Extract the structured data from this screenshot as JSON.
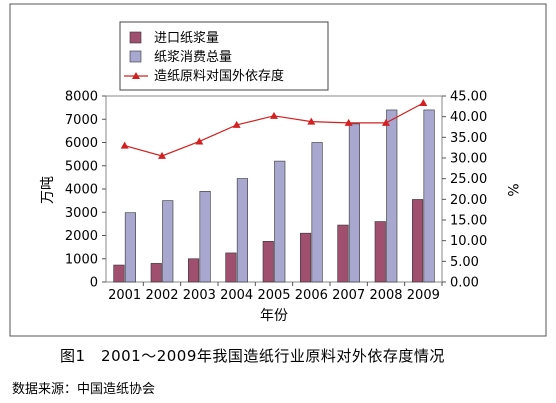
{
  "chart_data": {
    "type": "bar",
    "categories": [
      "2001",
      "2002",
      "2003",
      "2004",
      "2005",
      "2006",
      "2007",
      "2008",
      "2009"
    ],
    "series": [
      {
        "name": "进口纸浆量",
        "type": "bar",
        "axis": "left",
        "color": "#a0506e",
        "values": [
          730,
          800,
          1000,
          1250,
          1750,
          2100,
          2450,
          2600,
          3550
        ]
      },
      {
        "name": "纸浆消费总量",
        "type": "bar",
        "axis": "left",
        "color": "#a7a7d0",
        "values": [
          2980,
          3500,
          3900,
          4450,
          5200,
          6000,
          6800,
          7400,
          7400
        ]
      },
      {
        "name": "造纸原料对国外依存度",
        "type": "line",
        "axis": "right",
        "color": "#d42020",
        "values": [
          33.0,
          30.5,
          34.0,
          38.0,
          40.2,
          38.8,
          38.5,
          38.5,
          43.3
        ]
      }
    ],
    "ylabel": "万吨",
    "y2label": "%",
    "xlabel": "年份",
    "ylim": [
      0,
      8000
    ],
    "y2lim": [
      0,
      45
    ],
    "yticks": [
      "0",
      "1000",
      "2000",
      "3000",
      "4000",
      "5000",
      "6000",
      "7000",
      "8000"
    ],
    "y2ticks": [
      "0.00",
      "5.00",
      "10.00",
      "15.00",
      "20.00",
      "25.00",
      "30.00",
      "35.00",
      "40.00",
      "45.00"
    ],
    "grid": false,
    "legend": "top-left"
  },
  "caption": "图1　2001～2009年我国造纸行业原料对外依存度情况",
  "source": "数据来源：中国造纸协会"
}
